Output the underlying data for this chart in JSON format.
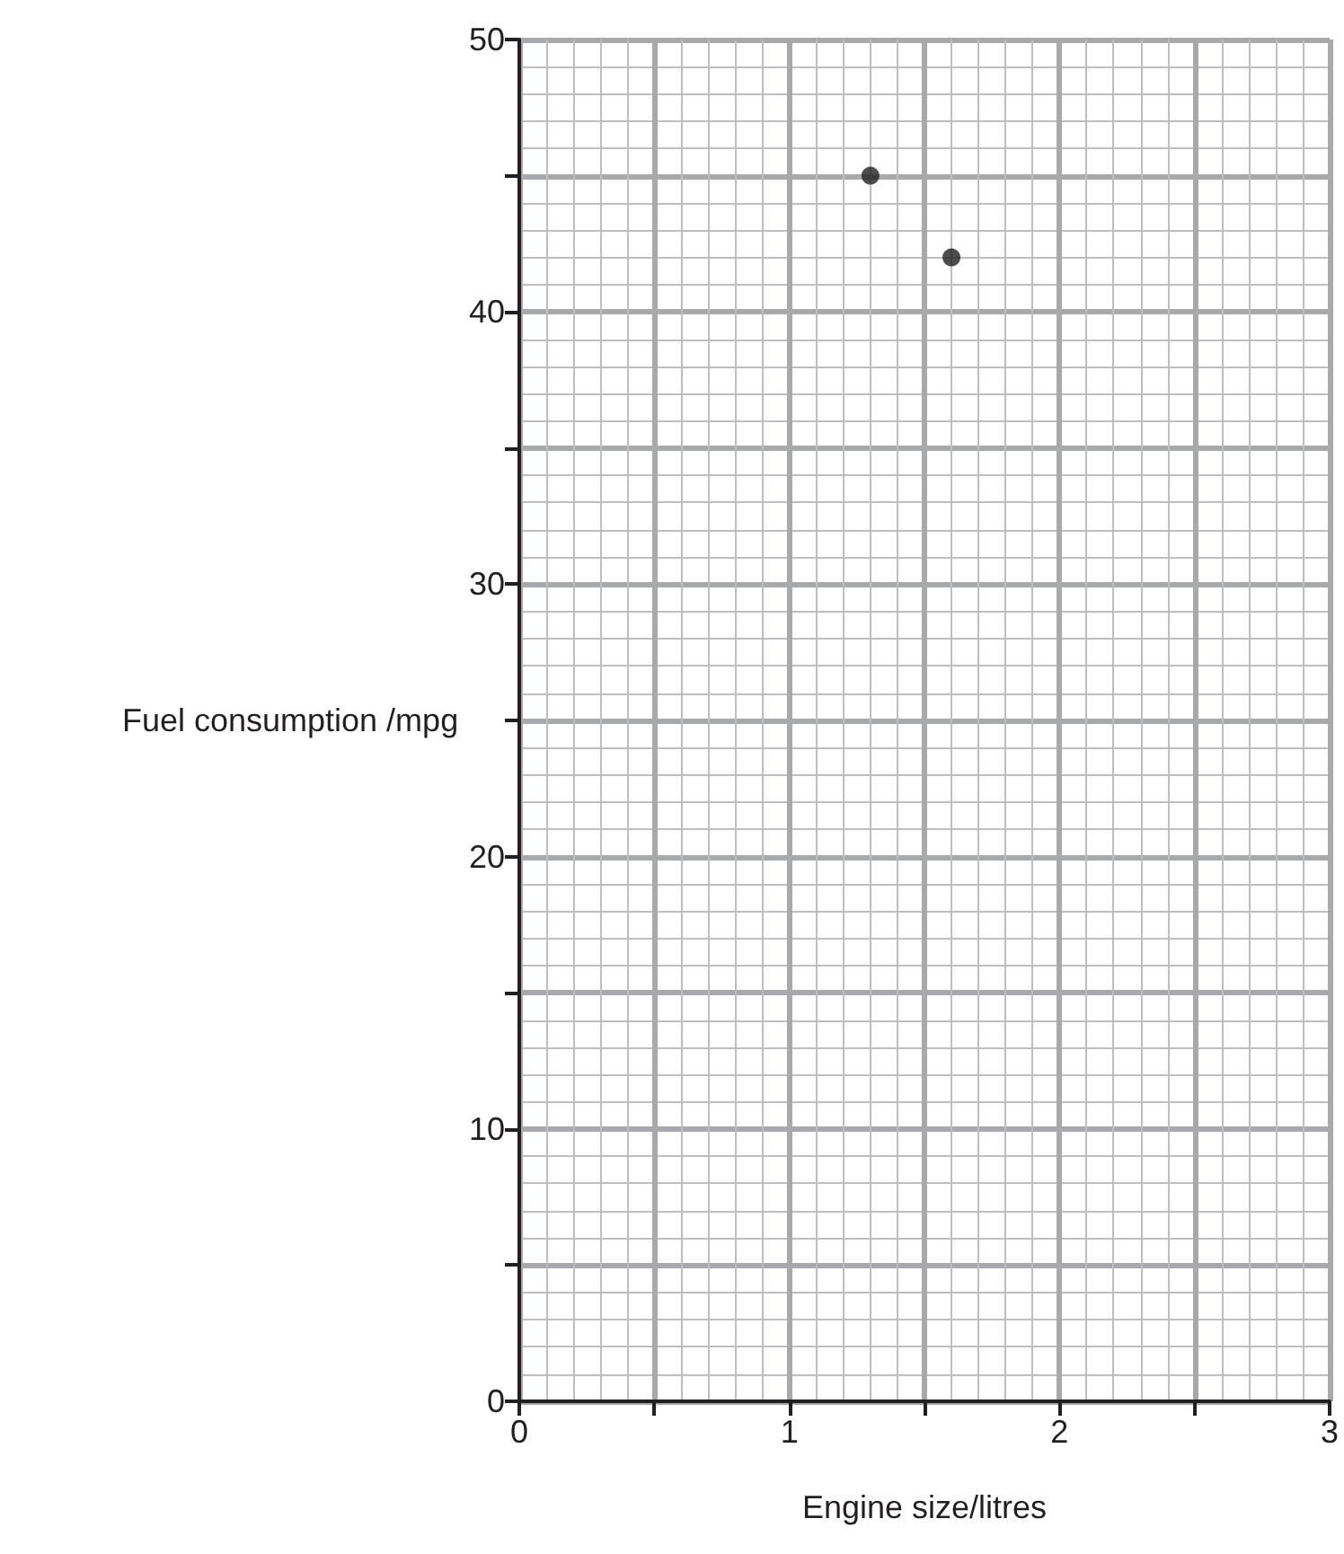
{
  "chart_data": {
    "type": "scatter",
    "xlabel": "Engine size/litres",
    "ylabel": "Fuel consumption /mpg",
    "x": [
      1.3,
      1.6
    ],
    "values": [
      45,
      42
    ],
    "color": "#231f20",
    "marker": "circle",
    "grid": true,
    "xlim": [
      0,
      3
    ],
    "xticks": [
      0,
      {
        "value": 0.5,
        "label": null
      },
      1,
      {
        "value": 1.5,
        "label": null
      },
      2,
      {
        "value": 2.5,
        "label": null
      },
      3
    ],
    "ylim": [
      0,
      50
    ],
    "yticks": [
      0,
      {
        "value": 5,
        "label": null
      },
      10,
      {
        "value": 15,
        "label": null
      },
      20,
      {
        "value": 25,
        "label": null
      },
      30,
      {
        "value": 35,
        "label": null
      },
      40,
      {
        "value": 45,
        "label": null
      },
      50
    ]
  }
}
